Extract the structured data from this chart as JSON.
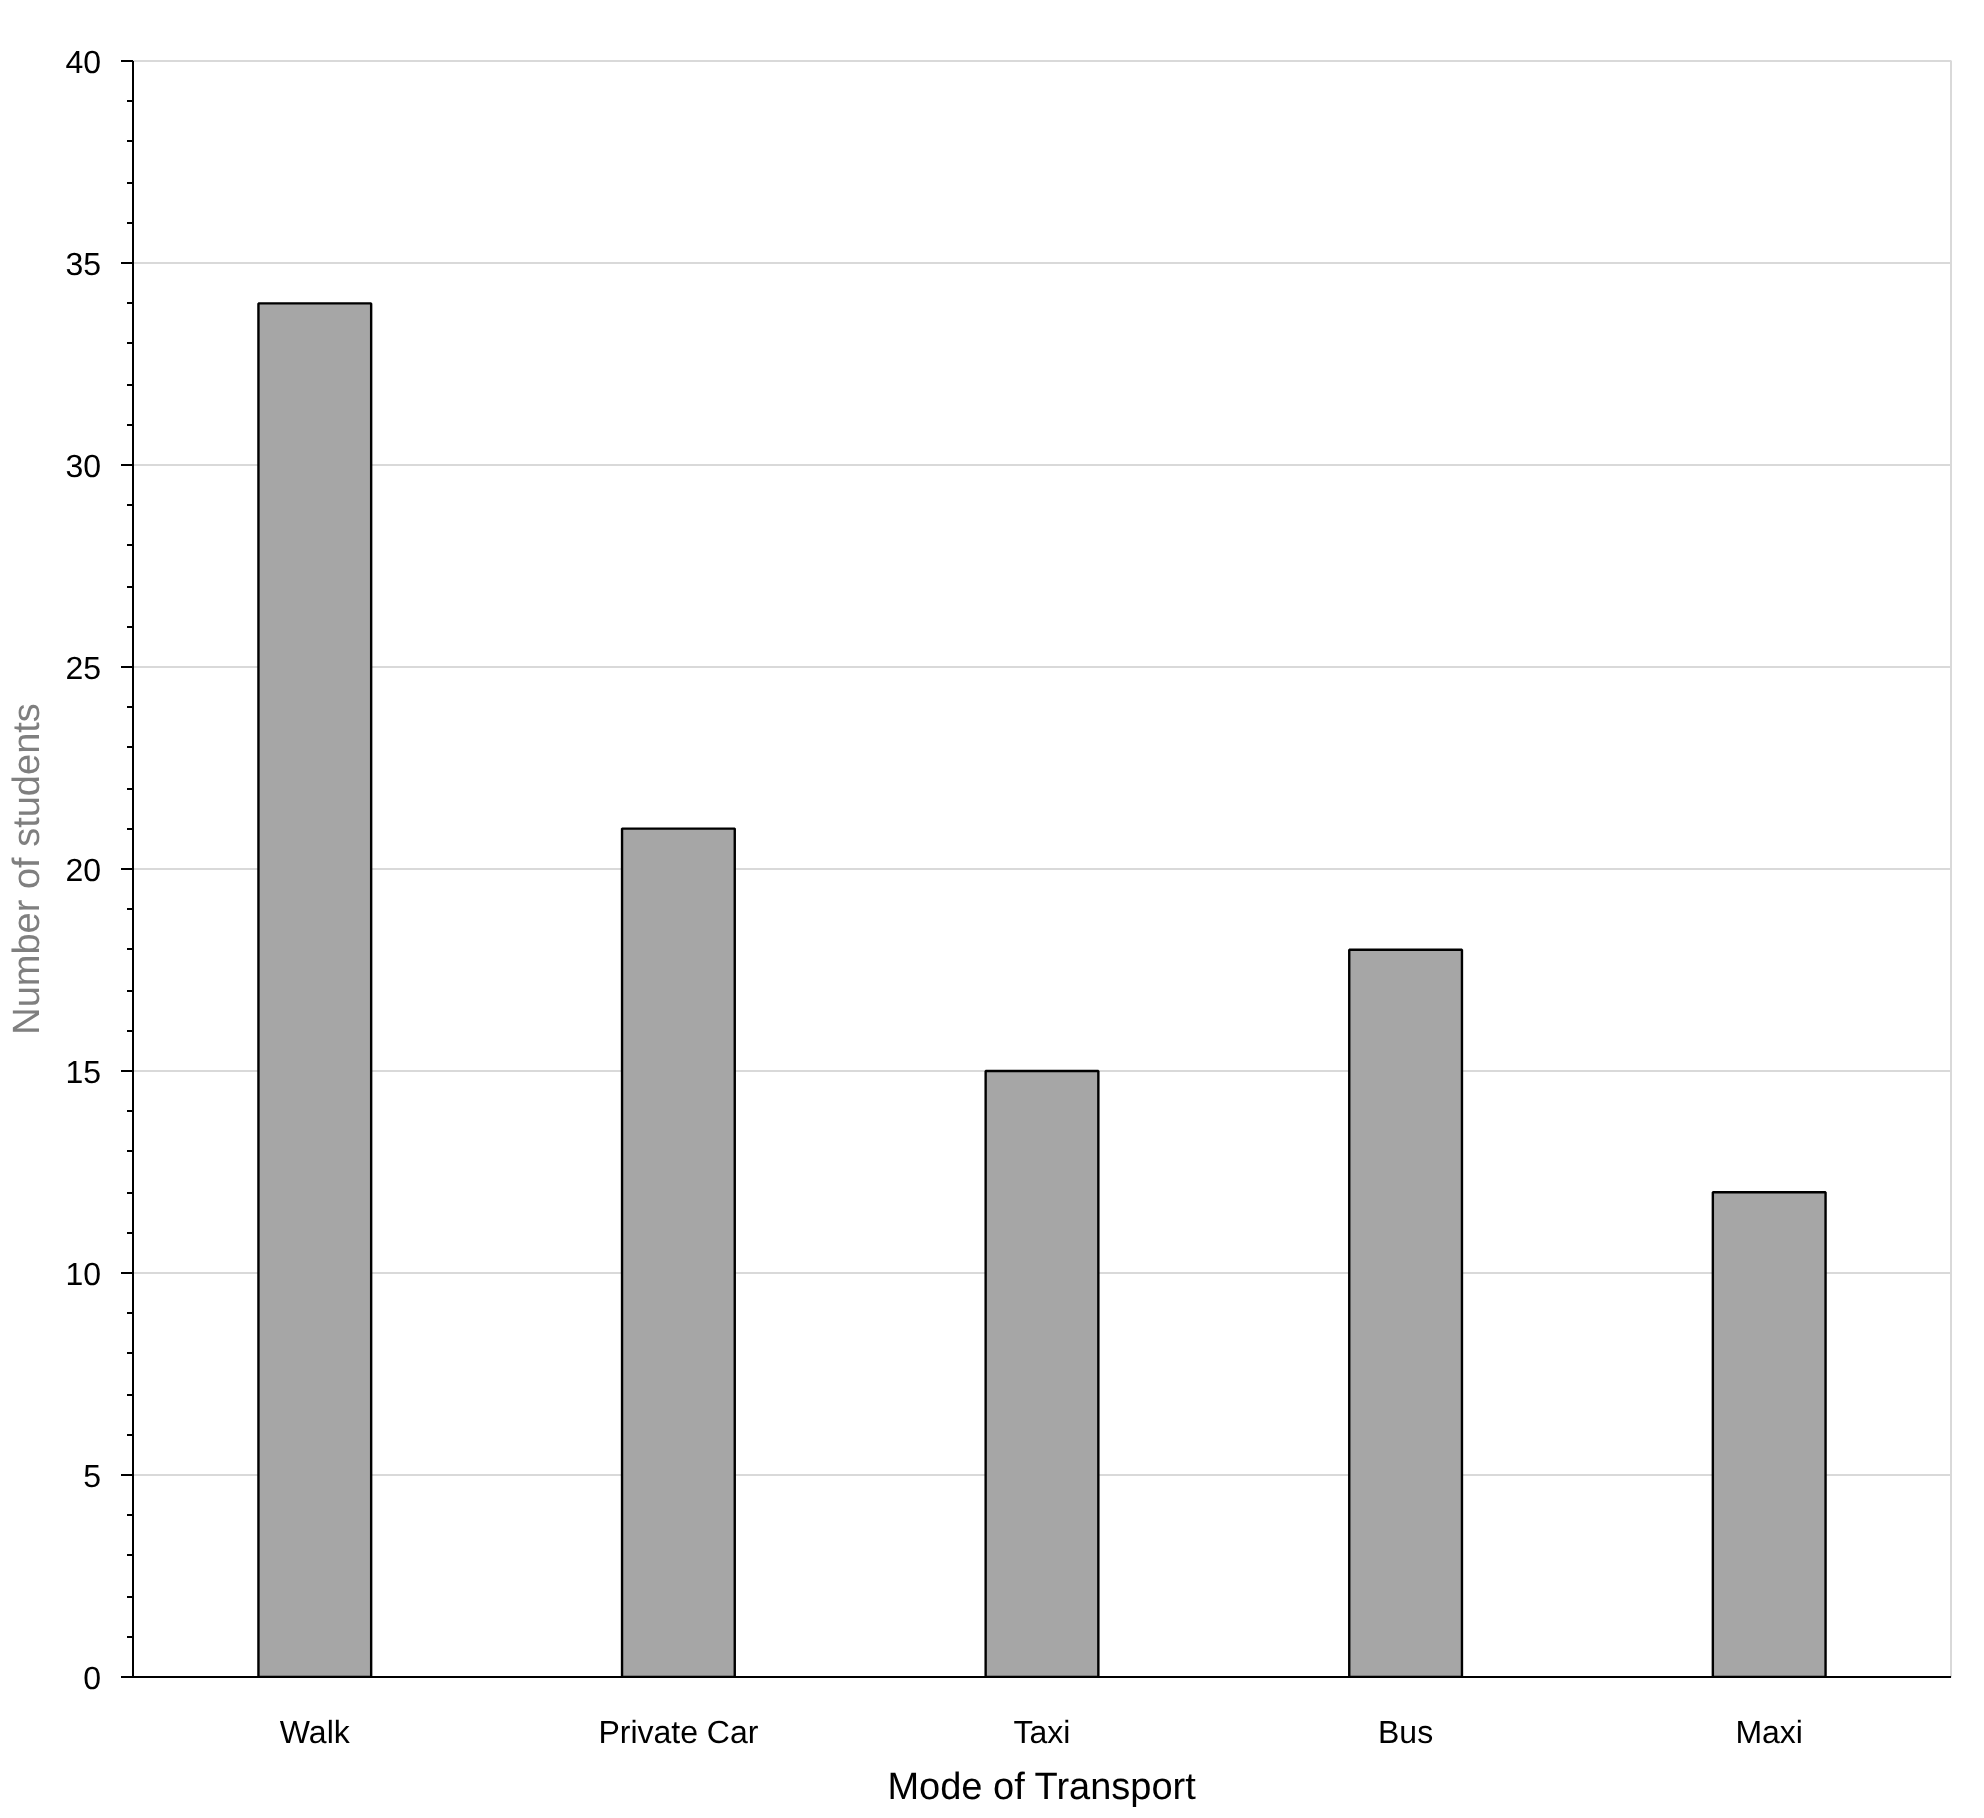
{
  "chart_data": {
    "type": "bar",
    "xlabel": "Mode of Transport",
    "ylabel": "Number of students",
    "categories": [
      "Walk",
      "Private Car",
      "Taxi",
      "Bus",
      "Maxi"
    ],
    "values": [
      34,
      21,
      15,
      18,
      12
    ],
    "color": "#a6a6a6",
    "ylim": [
      0,
      40
    ],
    "yticks": [
      0,
      5,
      10,
      15,
      20,
      25,
      30,
      35,
      40
    ],
    "grid": "y"
  }
}
